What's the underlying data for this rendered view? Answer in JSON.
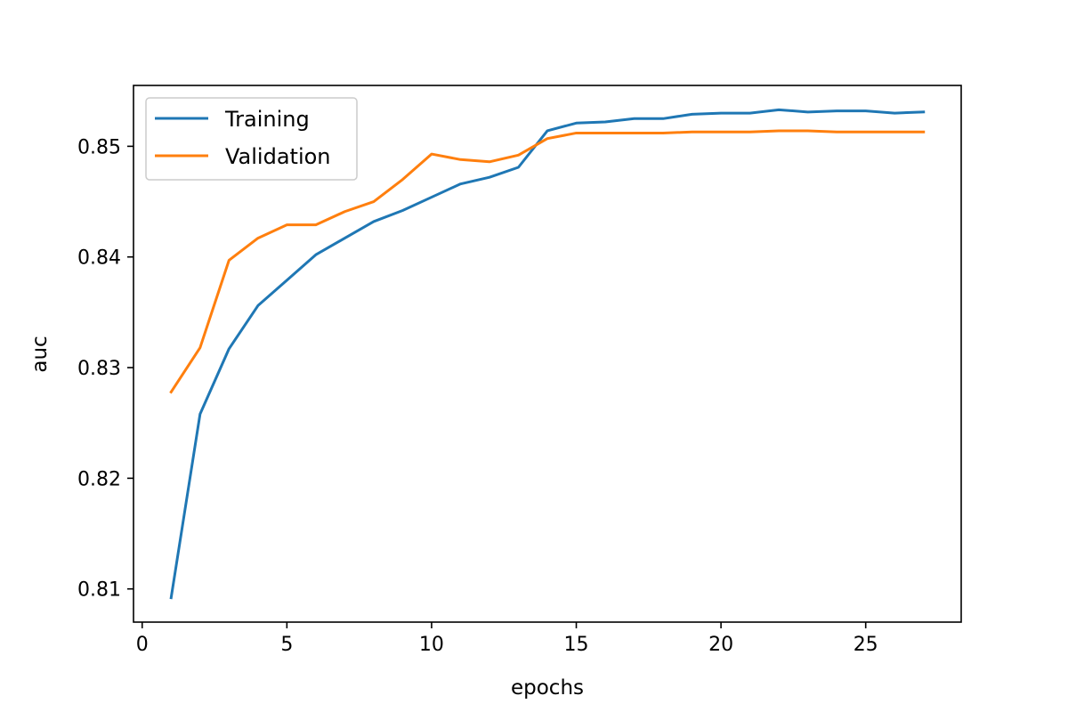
{
  "chart_data": {
    "type": "line",
    "title": "",
    "xlabel": "epochs",
    "ylabel": "auc",
    "xlim": [
      -0.3,
      28.3
    ],
    "ylim": [
      0.807,
      0.8555
    ],
    "xticks": [
      0,
      5,
      10,
      15,
      20,
      25
    ],
    "yticks": [
      0.81,
      0.82,
      0.83,
      0.84,
      0.85
    ],
    "ytick_labels": [
      "0.81",
      "0.82",
      "0.83",
      "0.84",
      "0.85"
    ],
    "grid": false,
    "legend_position": "upper-left",
    "x": [
      1,
      2,
      3,
      4,
      5,
      6,
      7,
      8,
      9,
      10,
      11,
      12,
      13,
      14,
      15,
      16,
      17,
      18,
      19,
      20,
      21,
      22,
      23,
      24,
      25,
      26,
      27
    ],
    "series": [
      {
        "name": "Training",
        "color": "#1f77b4",
        "values": [
          0.8092,
          0.8258,
          0.8317,
          0.8356,
          0.8379,
          0.8402,
          0.8417,
          0.8432,
          0.8442,
          0.8454,
          0.8466,
          0.8472,
          0.8481,
          0.8514,
          0.8521,
          0.8522,
          0.8525,
          0.8525,
          0.8529,
          0.853,
          0.853,
          0.8533,
          0.8531,
          0.8532,
          0.8532,
          0.853,
          0.8531
        ]
      },
      {
        "name": "Validation",
        "color": "#ff7f0e",
        "values": [
          0.8278,
          0.8318,
          0.8397,
          0.8417,
          0.8429,
          0.8429,
          0.8441,
          0.845,
          0.847,
          0.8493,
          0.8488,
          0.8486,
          0.8492,
          0.8507,
          0.8512,
          0.8512,
          0.8512,
          0.8512,
          0.8513,
          0.8513,
          0.8513,
          0.8514,
          0.8514,
          0.8513,
          0.8513,
          0.8513,
          0.8513
        ]
      }
    ]
  }
}
